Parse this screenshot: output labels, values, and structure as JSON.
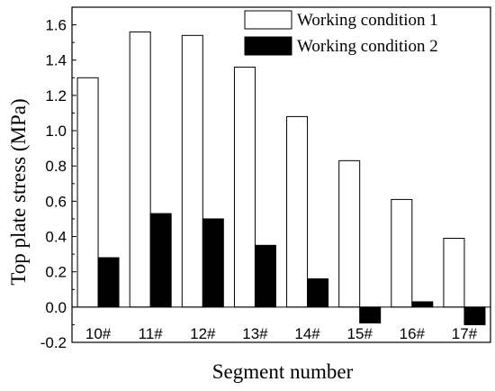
{
  "chart_data": {
    "type": "bar",
    "title": "",
    "xlabel": "Segment number",
    "ylabel": "Top plate stress (MPa)",
    "categories": [
      "10#",
      "11#",
      "12#",
      "13#",
      "14#",
      "15#",
      "16#",
      "17#"
    ],
    "series": [
      {
        "name": "Working condition 1",
        "color": "#ffffff",
        "values": [
          1.3,
          1.56,
          1.54,
          1.36,
          1.08,
          0.83,
          0.61,
          0.39
        ]
      },
      {
        "name": "Working condition 2",
        "color": "#000000",
        "values": [
          0.28,
          0.53,
          0.5,
          0.35,
          0.16,
          -0.09,
          0.03,
          -0.1
        ]
      }
    ],
    "ylim": [
      -0.2,
      1.7
    ],
    "yticks": [
      "-0.2",
      "0.0",
      "0.2",
      "0.4",
      "0.6",
      "0.8",
      "1.0",
      "1.2",
      "1.4",
      "1.6"
    ],
    "grid": false,
    "legend": "top-right"
  }
}
